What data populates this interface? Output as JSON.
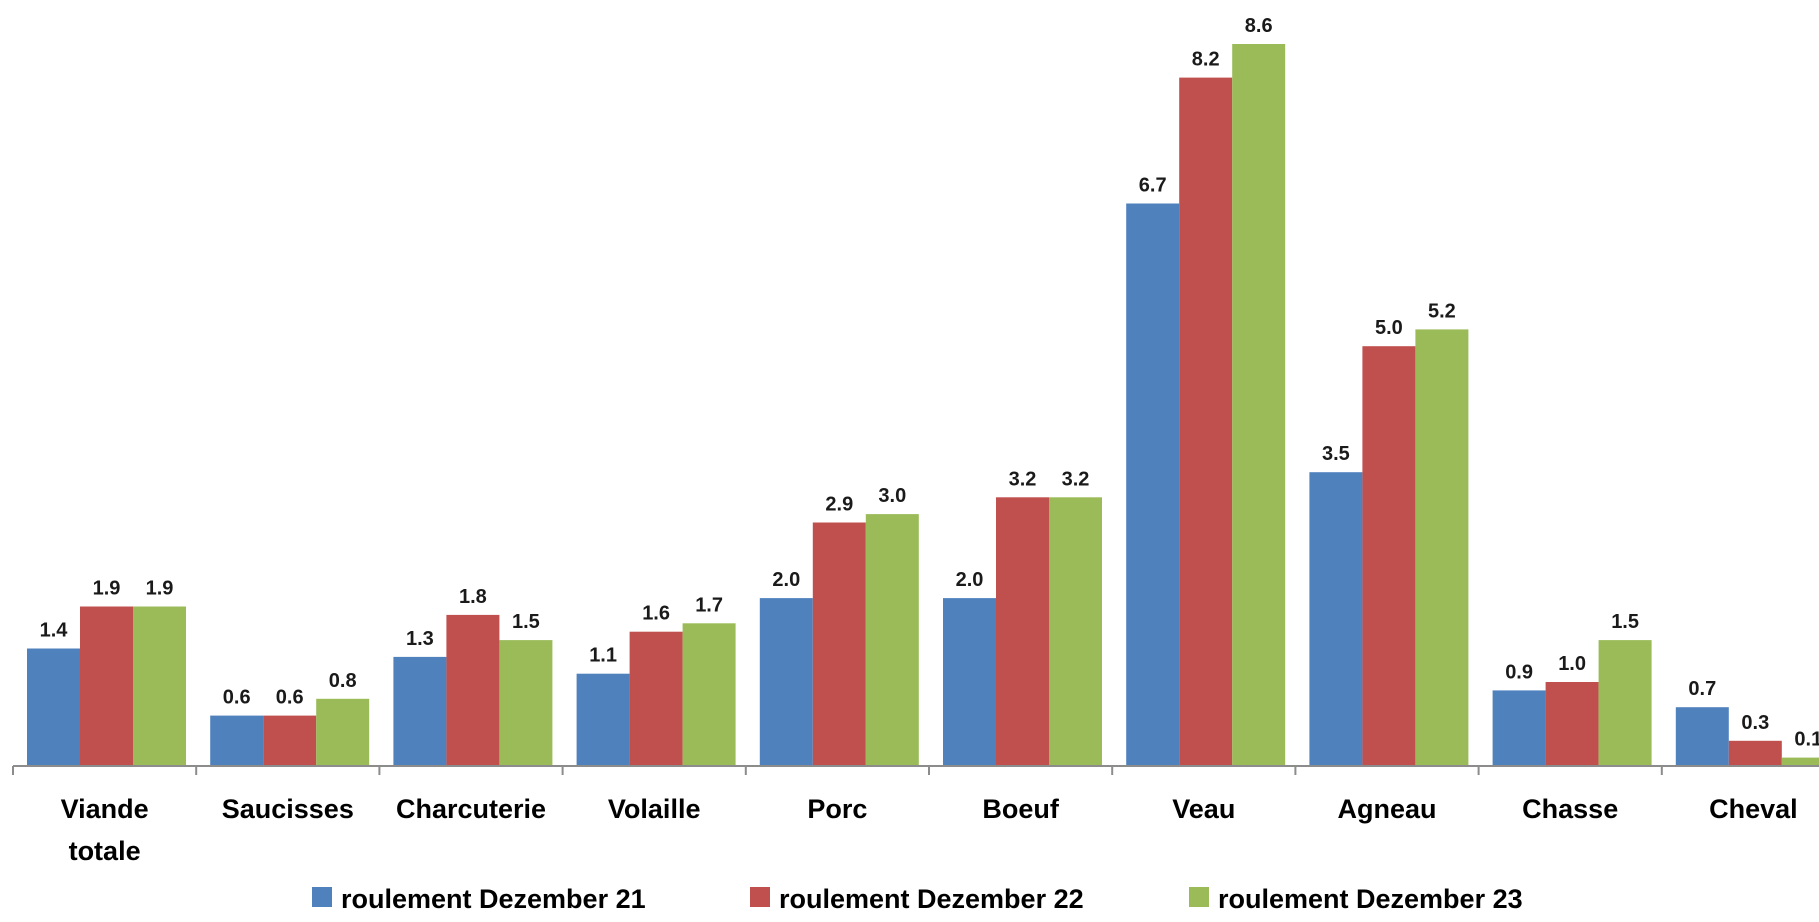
{
  "chart_data": {
    "type": "bar",
    "title": "",
    "xlabel": "",
    "ylabel": "",
    "ylim": [
      0,
      8.6
    ],
    "grid": false,
    "legend_position": "bottom",
    "categories": [
      [
        "Viande",
        "totale"
      ],
      [
        "Saucisses"
      ],
      [
        "Charcuterie"
      ],
      [
        "Volaille"
      ],
      [
        "Porc"
      ],
      [
        "Boeuf"
      ],
      [
        "Veau"
      ],
      [
        "Agneau"
      ],
      [
        "Chasse"
      ],
      [
        "Cheval"
      ]
    ],
    "series": [
      {
        "name": "roulement Dezember 21",
        "color": "#4F81BD",
        "values": [
          1.4,
          0.6,
          1.3,
          1.1,
          2.0,
          2.0,
          6.7,
          3.5,
          0.9,
          0.7
        ],
        "labels": [
          "1.4",
          "0.6",
          "1.3",
          "1.1",
          "2.0",
          "2.0",
          "6.7",
          "3.5",
          "0.9",
          "0.7"
        ]
      },
      {
        "name": "roulement Dezember 22",
        "color": "#C0504D",
        "values": [
          1.9,
          0.6,
          1.8,
          1.6,
          2.9,
          3.2,
          8.2,
          5.0,
          1.0,
          0.3
        ],
        "labels": [
          "1.9",
          "0.6",
          "1.8",
          "1.6",
          "2.9",
          "3.2",
          "8.2",
          "5.0",
          "1.0",
          "0.3"
        ]
      },
      {
        "name": "roulement Dezember 23",
        "color": "#9BBB59",
        "values": [
          1.9,
          0.8,
          1.5,
          1.7,
          3.0,
          3.2,
          8.6,
          5.2,
          1.5,
          0.1
        ],
        "labels": [
          "1.9",
          "0.8",
          "1.5",
          "1.7",
          "3.0",
          "3.2",
          "8.6",
          "5.2",
          "1.5",
          "0.1"
        ]
      }
    ]
  }
}
